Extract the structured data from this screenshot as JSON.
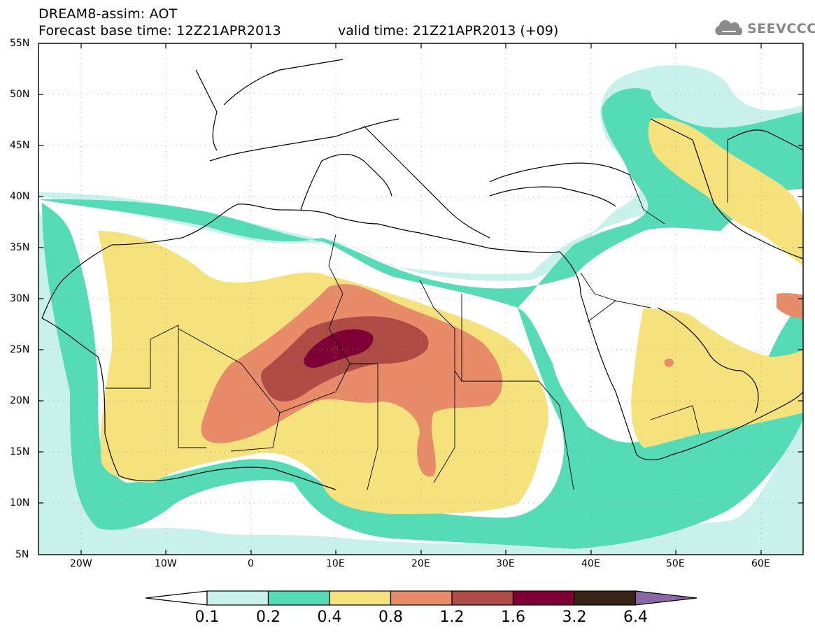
{
  "header": {
    "title_line1": "DREAM8-assim: AOT",
    "forecast_base_time": "Forecast base time: 12Z21APR2013",
    "valid_time": "valid time: 21Z21APR2013 (+09)"
  },
  "logo": {
    "text": "SEEVCCC",
    "icon": "cloud-icon"
  },
  "map": {
    "lon_labels": [
      "20W",
      "10W",
      "0",
      "10E",
      "20E",
      "30E",
      "40E",
      "50E",
      "60E"
    ],
    "lat_labels": [
      "55N",
      "50N",
      "45N",
      "40N",
      "35N",
      "30N",
      "25N",
      "20N",
      "15N",
      "10N",
      "5N"
    ],
    "extent": {
      "lon_min": -25,
      "lon_max": 65,
      "lat_min": 5,
      "lat_max": 55
    }
  },
  "colorbar": {
    "labels": [
      "0.1",
      "0.2",
      "0.4",
      "0.8",
      "1.2",
      "1.6",
      "3.2",
      "6.4"
    ],
    "colors": [
      "#c7f1ea",
      "#55dbb6",
      "#f5e27d",
      "#e88b69",
      "#ad4b45",
      "#7e0035",
      "#3b2415",
      "#8c66a7"
    ]
  }
}
